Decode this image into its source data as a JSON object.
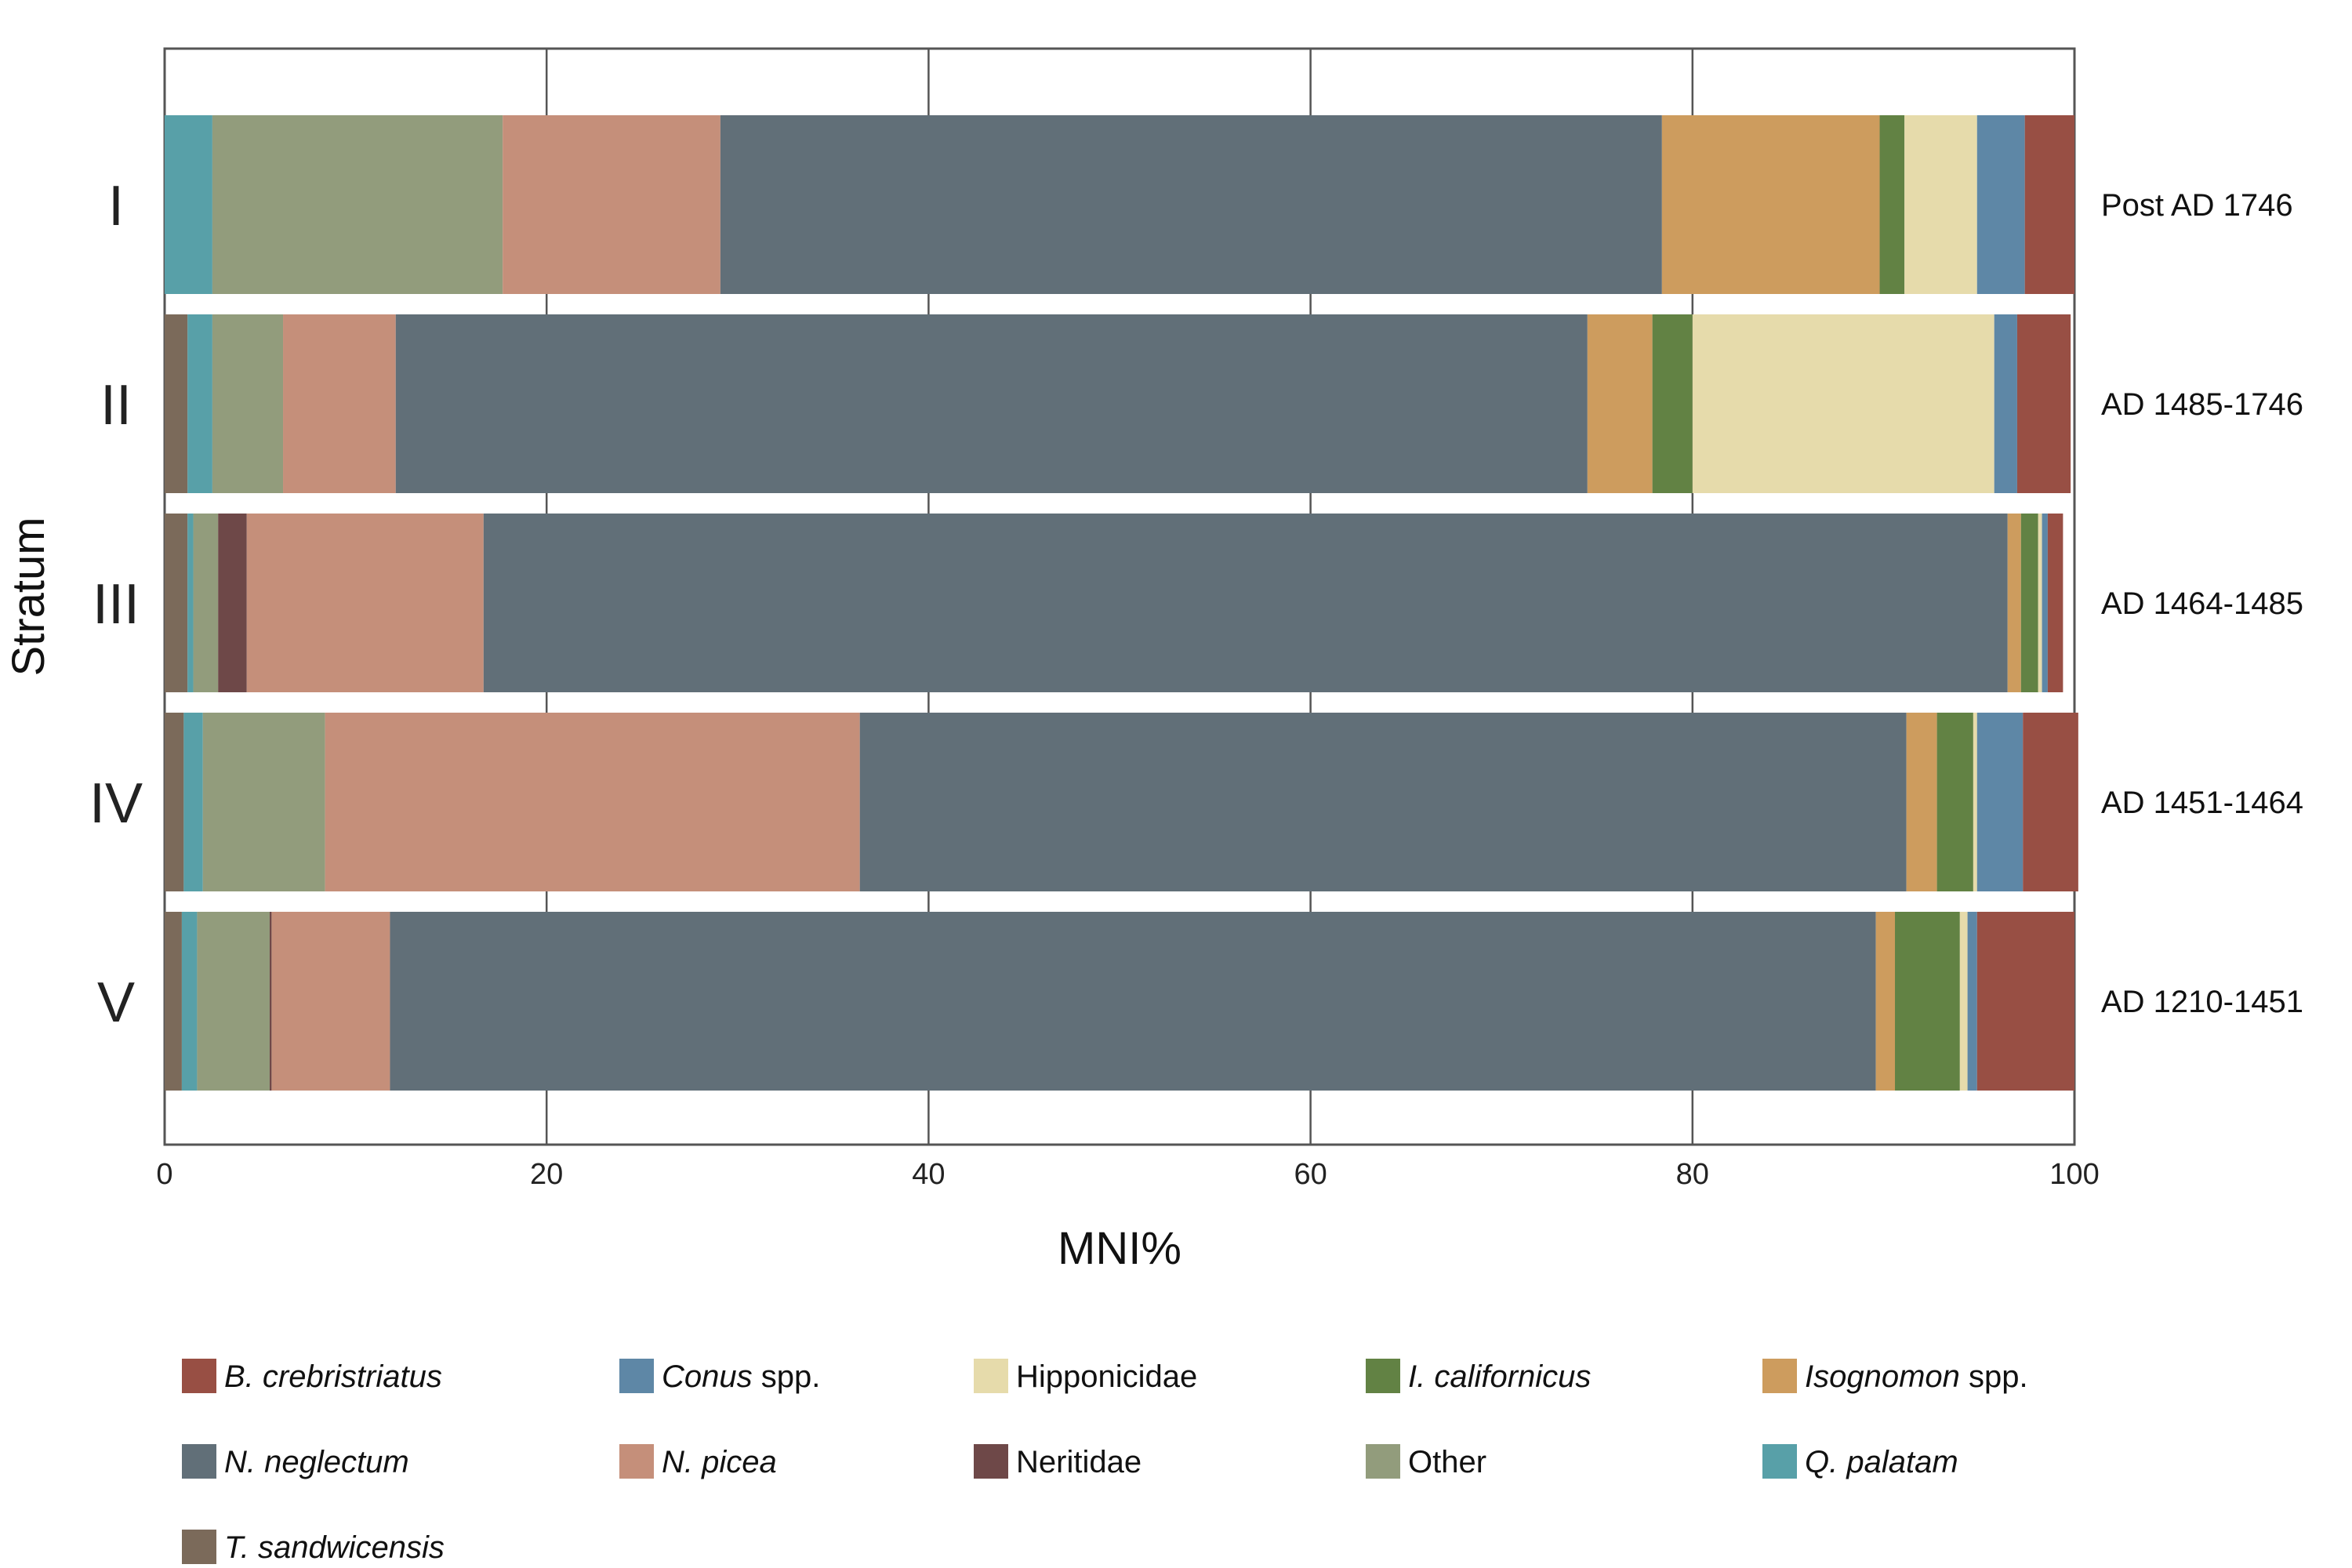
{
  "chart_data": {
    "type": "bar",
    "orientation": "horizontal",
    "stacked": true,
    "title": "",
    "xlabel": "MNI%",
    "ylabel": "Stratum",
    "xlim": [
      0,
      100
    ],
    "xticks": [
      0,
      20,
      40,
      60,
      80,
      100
    ],
    "grid": "vertical lines at x ticks",
    "legend_position": "bottom",
    "categories": [
      "I",
      "II",
      "III",
      "IV",
      "V"
    ],
    "periods": [
      "Post AD 1746",
      "AD 1485-1746",
      "AD 1464-1485",
      "AD 1451-1464",
      "AD 1210-1451"
    ],
    "series": [
      {
        "name": "T. sandwicensis",
        "italic": "T. sandwicensis",
        "suffix": "",
        "color": "#7b6a5a",
        "values": [
          0,
          1.2,
          1.2,
          1.0,
          0.9
        ]
      },
      {
        "name": "Q. palatam",
        "italic": "Q. palatam",
        "suffix": "",
        "color": "#58a0a8",
        "values": [
          2.5,
          1.3,
          0.3,
          1.0,
          0.8
        ]
      },
      {
        "name": "Other",
        "italic": "",
        "suffix": "Other",
        "color": "#929c7c",
        "values": [
          15.2,
          3.7,
          1.3,
          6.4,
          3.8
        ]
      },
      {
        "name": "Neritidae",
        "italic": "",
        "suffix": "Neritidae",
        "color": "#6e4848",
        "values": [
          0,
          0,
          1.5,
          0,
          0.1
        ]
      },
      {
        "name": "N. picea",
        "italic": "N. picea",
        "suffix": "",
        "color": "#c58f7a",
        "values": [
          11.4,
          5.9,
          12.4,
          28.0,
          6.2
        ]
      },
      {
        "name": "N. neglectum",
        "italic": "N. neglectum",
        "suffix": "",
        "color": "#616f78",
        "values": [
          49.3,
          62.4,
          79.8,
          54.8,
          77.8
        ]
      },
      {
        "name": "Isognomon spp.",
        "italic": "Isognomon",
        "suffix": " spp.",
        "color": "#cd9c5e",
        "values": [
          11.4,
          3.4,
          0.7,
          1.6,
          1.0
        ]
      },
      {
        "name": "I. californicus",
        "italic": "I. californicus",
        "suffix": "",
        "color": "#628244",
        "values": [
          1.3,
          2.1,
          0.9,
          1.9,
          3.4
        ]
      },
      {
        "name": "Hipponicidae",
        "italic": "",
        "suffix": "Hipponicidae",
        "color": "#e6dbab",
        "values": [
          3.8,
          15.8,
          0.2,
          0.2,
          0.4
        ]
      },
      {
        "name": "Conus spp.",
        "italic": "Conus",
        "suffix": " spp.",
        "color": "#5e87a6",
        "values": [
          2.5,
          1.2,
          0.3,
          2.4,
          0.5
        ]
      },
      {
        "name": "B. crebristriatus",
        "italic": "B. crebristriatus",
        "suffix": "",
        "color": "#984f44",
        "values": [
          2.6,
          2.8,
          0.8,
          2.9,
          5.1
        ]
      }
    ],
    "legend_order": [
      "B. crebristriatus",
      "Conus spp.",
      "Hipponicidae",
      "I. californicus",
      "Isognomon spp.",
      "N. neglectum",
      "N. picea",
      "Neritidae",
      "Other",
      "Q. palatam",
      "T. sandwicensis"
    ]
  }
}
